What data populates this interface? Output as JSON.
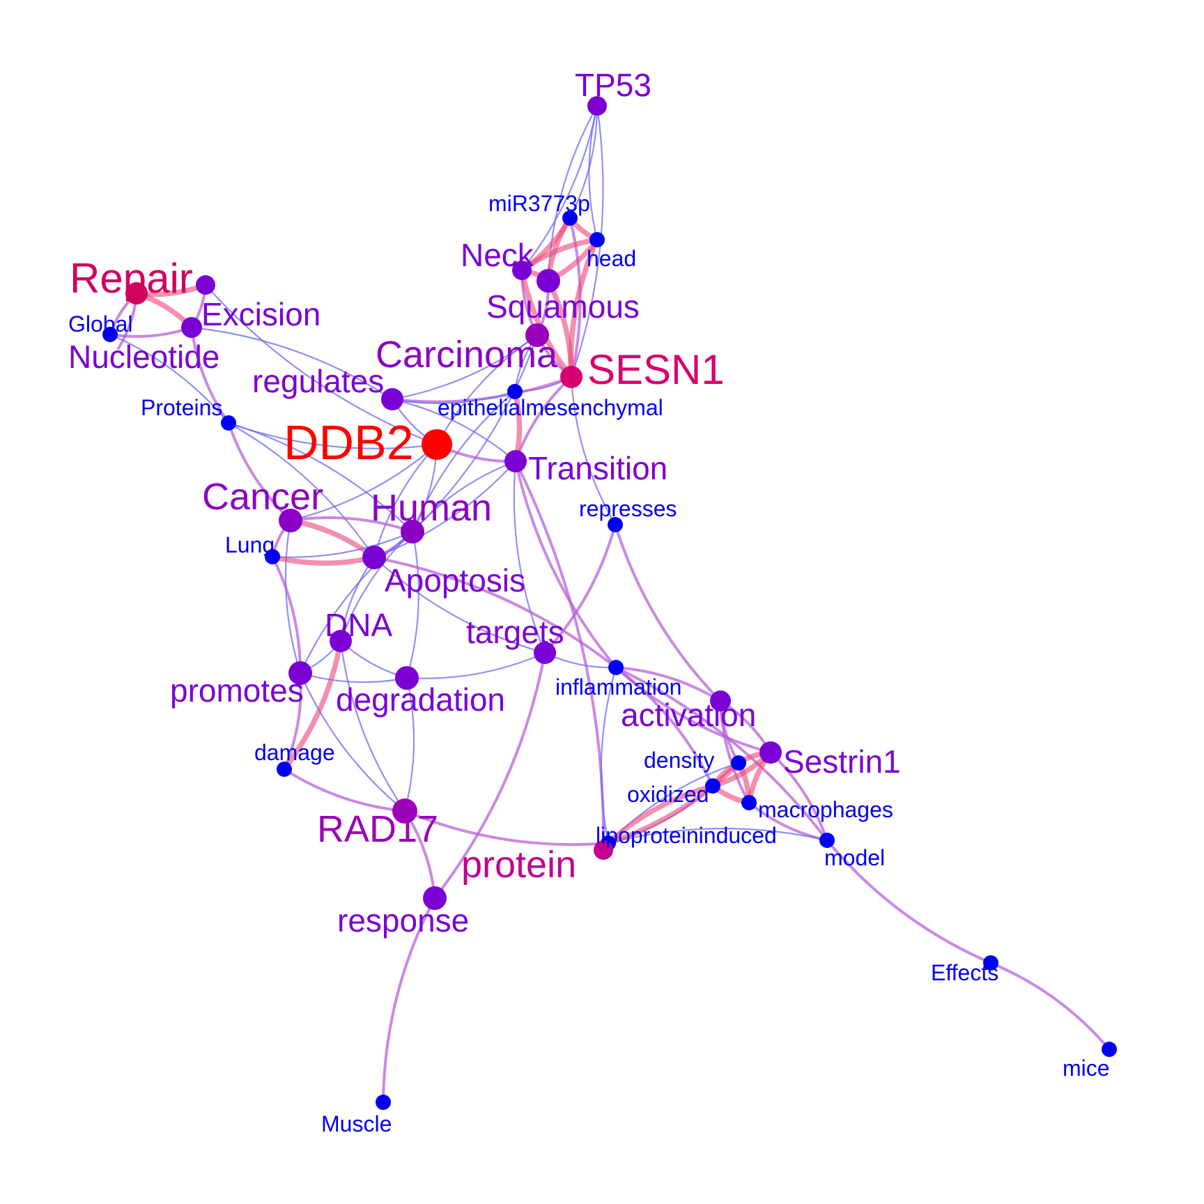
{
  "colors": {
    "background": "#ffffff",
    "edge_weak": "#6a6af0",
    "edge_mid": "#b65ad8",
    "edge_strong": "#ee4a7a"
  },
  "nodes": [
    {
      "id": "TP53",
      "label": "TP53",
      "color": "#7b00d4",
      "label_color": "#7b00d4",
      "r": 14,
      "level": 4
    },
    {
      "id": "miR3773p",
      "label": "miR3773p",
      "color": "#0000f0",
      "label_color": "#0000f0",
      "r": 11,
      "level": 1
    },
    {
      "id": "head",
      "label": "head",
      "color": "#0000f0",
      "label_color": "#0000f0",
      "r": 11,
      "level": 1
    },
    {
      "id": "Neck",
      "label": "Neck",
      "color": "#7b00d4",
      "label_color": "#7b00d4",
      "r": 14,
      "level": 4
    },
    {
      "id": "Squamous",
      "label": "Squamous",
      "color": "#7b00d4",
      "label_color": "#7b00d4",
      "r": 17,
      "level": 4
    },
    {
      "id": "SquamousHub",
      "label": "",
      "color": "#9a00b8",
      "label_color": "#9a00b8",
      "r": 17,
      "level": 4
    },
    {
      "id": "Carcinoma",
      "label": "Carcinoma",
      "color": "#8a00c4",
      "label_color": "#8a00c4",
      "r": 0,
      "level": 5
    },
    {
      "id": "SESN1",
      "label": "SESN1",
      "color": "#d8006e",
      "label_color": "#d8006e",
      "r": 16,
      "level": 6
    },
    {
      "id": "epithelialmesenchymal",
      "label": "epithelialmesenchymal",
      "color": "#0000f0",
      "label_color": "#0000f0",
      "r": 11,
      "level": 1
    },
    {
      "id": "Repair",
      "label": "Repair",
      "color": "#d00060",
      "label_color": "#d00060",
      "r": 16,
      "level": 6
    },
    {
      "id": "RepairNb",
      "label": "",
      "color": "#7b00d4",
      "label_color": "#7b00d4",
      "r": 14,
      "level": 4
    },
    {
      "id": "Excision",
      "label": "Excision",
      "color": "#7b00d4",
      "label_color": "#7b00d4",
      "r": 15,
      "level": 4
    },
    {
      "id": "Global",
      "label": "Global",
      "color": "#0000f0",
      "label_color": "#0000f0",
      "r": 11,
      "level": 1
    },
    {
      "id": "Nucleotide",
      "label": "Nucleotide",
      "color": "#7b00d4",
      "label_color": "#7b00d4",
      "r": 0,
      "level": 4
    },
    {
      "id": "regulates",
      "label": "regulates",
      "color": "#7b00d4",
      "label_color": "#7b00d4",
      "r": 16,
      "level": 4
    },
    {
      "id": "Proteins",
      "label": "Proteins",
      "color": "#0000f0",
      "label_color": "#0000f0",
      "r": 11,
      "level": 1
    },
    {
      "id": "DDB2",
      "label": "DDB2",
      "color": "#ff0000",
      "label_color": "#ff0000",
      "r": 22,
      "level": 7
    },
    {
      "id": "Transition",
      "label": "Transition",
      "color": "#7b00d4",
      "label_color": "#7b00d4",
      "r": 16,
      "level": 4
    },
    {
      "id": "Cancer",
      "label": "Cancer",
      "color": "#8a00c4",
      "label_color": "#8a00c4",
      "r": 17,
      "level": 5
    },
    {
      "id": "Human",
      "label": "Human",
      "color": "#8a00c4",
      "label_color": "#8a00c4",
      "r": 17,
      "level": 5
    },
    {
      "id": "represses",
      "label": "represses",
      "color": "#0000f0",
      "label_color": "#0000f0",
      "r": 11,
      "level": 1
    },
    {
      "id": "Lung",
      "label": "Lung",
      "color": "#0000f0",
      "label_color": "#0000f0",
      "r": 11,
      "level": 1
    },
    {
      "id": "Apoptosis",
      "label": "Apoptosis",
      "color": "#7b00d4",
      "label_color": "#7b00d4",
      "r": 17,
      "level": 4
    },
    {
      "id": "DNA",
      "label": "DNA",
      "color": "#7b00d4",
      "label_color": "#7b00d4",
      "r": 16,
      "level": 4
    },
    {
      "id": "targets",
      "label": "targets",
      "color": "#7b00d4",
      "label_color": "#7b00d4",
      "r": 16,
      "level": 4
    },
    {
      "id": "inflammation",
      "label": "inflammation",
      "color": "#0000f0",
      "label_color": "#0000f0",
      "r": 11,
      "level": 1
    },
    {
      "id": "promotes",
      "label": "promotes",
      "color": "#7b00d4",
      "label_color": "#7b00d4",
      "r": 17,
      "level": 4
    },
    {
      "id": "degradation",
      "label": "degradation",
      "color": "#7b00d4",
      "label_color": "#7b00d4",
      "r": 17,
      "level": 4
    },
    {
      "id": "activation",
      "label": "activation",
      "color": "#7b00d4",
      "label_color": "#7b00d4",
      "r": 15,
      "level": 4
    },
    {
      "id": "density",
      "label": "density",
      "color": "#0000f0",
      "label_color": "#0000f0",
      "r": 11,
      "level": 1
    },
    {
      "id": "Sestrin1",
      "label": "Sestrin1",
      "color": "#7b00d4",
      "label_color": "#7b00d4",
      "r": 16,
      "level": 4
    },
    {
      "id": "damage",
      "label": "damage",
      "color": "#0000f0",
      "label_color": "#0000f0",
      "r": 11,
      "level": 1
    },
    {
      "id": "oxidized",
      "label": "oxidized",
      "color": "#0000f0",
      "label_color": "#0000f0",
      "r": 11,
      "level": 1
    },
    {
      "id": "macrophages",
      "label": "macrophages",
      "color": "#0000f0",
      "label_color": "#0000f0",
      "r": 11,
      "level": 1
    },
    {
      "id": "RAD17",
      "label": "RAD17",
      "color": "#9a00b8",
      "label_color": "#9a00b8",
      "r": 18,
      "level": 5
    },
    {
      "id": "lipoproteininduced",
      "label": "lipoproteininduced",
      "color": "#0000f0",
      "label_color": "#0000f0",
      "r": 11,
      "level": 1
    },
    {
      "id": "model",
      "label": "model",
      "color": "#0000f0",
      "label_color": "#0000f0",
      "r": 11,
      "level": 1
    },
    {
      "id": "protein",
      "label": "protein",
      "color": "#c00090",
      "label_color": "#c00090",
      "r": 14,
      "level": 6
    },
    {
      "id": "response",
      "label": "response",
      "color": "#7b00d4",
      "label_color": "#7b00d4",
      "r": 17,
      "level": 4
    },
    {
      "id": "Effects",
      "label": "Effects",
      "color": "#0000f0",
      "label_color": "#0000f0",
      "r": 11,
      "level": 1
    },
    {
      "id": "mice",
      "label": "mice",
      "color": "#0000f0",
      "label_color": "#0000f0",
      "r": 11,
      "level": 1
    },
    {
      "id": "Muscle",
      "label": "Muscle",
      "color": "#0000f0",
      "label_color": "#0000f0",
      "r": 11,
      "level": 1
    }
  ],
  "edges": [
    [
      "TP53",
      "miR3773p",
      1
    ],
    [
      "TP53",
      "head",
      1
    ],
    [
      "TP53",
      "Neck",
      1
    ],
    [
      "TP53",
      "Squamous",
      1
    ],
    [
      "TP53",
      "SESN1",
      1
    ],
    [
      "miR3773p",
      "head",
      3
    ],
    [
      "miR3773p",
      "Neck",
      3
    ],
    [
      "miR3773p",
      "Squamous",
      3
    ],
    [
      "miR3773p",
      "SESN1",
      2
    ],
    [
      "head",
      "Neck",
      3
    ],
    [
      "head",
      "Squamous",
      3
    ],
    [
      "head",
      "SESN1",
      3
    ],
    [
      "Neck",
      "Squamous",
      3
    ],
    [
      "Neck",
      "SquamousHub",
      2
    ],
    [
      "Squamous",
      "SquamousHub",
      2
    ],
    [
      "Neck",
      "SESN1",
      3
    ],
    [
      "Squamous",
      "SESN1",
      3
    ],
    [
      "SquamousHub",
      "SESN1",
      2
    ],
    [
      "SquamousHub",
      "regulates",
      1
    ],
    [
      "SquamousHub",
      "DDB2",
      1
    ],
    [
      "SquamousHub",
      "Human",
      1
    ],
    [
      "SquamousHub",
      "epithelialmesenchymal",
      1
    ],
    [
      "SESN1",
      "epithelialmesenchymal",
      1
    ],
    [
      "SESN1",
      "Transition",
      2
    ],
    [
      "SESN1",
      "regulates",
      2
    ],
    [
      "SESN1",
      "represses",
      1
    ],
    [
      "epithelialmesenchymal",
      "Transition",
      3
    ],
    [
      "epithelialmesenchymal",
      "Human",
      1
    ],
    [
      "epithelialmesenchymal",
      "regulates",
      1
    ],
    [
      "Repair",
      "RepairNb",
      3
    ],
    [
      "Repair",
      "Excision",
      3
    ],
    [
      "Repair",
      "Global",
      2
    ],
    [
      "Repair",
      "Nucleotide",
      2
    ],
    [
      "Excision",
      "RepairNb",
      2
    ],
    [
      "Excision",
      "Global",
      2
    ],
    [
      "Excision",
      "Proteins",
      2
    ],
    [
      "Excision",
      "regulates",
      1
    ],
    [
      "RepairNb",
      "DDB2",
      1
    ],
    [
      "Global",
      "Proteins",
      1
    ],
    [
      "Proteins",
      "Cancer",
      2
    ],
    [
      "Proteins",
      "Human",
      1
    ],
    [
      "Proteins",
      "DDB2",
      1
    ],
    [
      "Proteins",
      "Apoptosis",
      1
    ],
    [
      "regulates",
      "DDB2",
      1
    ],
    [
      "regulates",
      "Transition",
      1
    ],
    [
      "DDB2",
      "Transition",
      2
    ],
    [
      "DDB2",
      "Human",
      1
    ],
    [
      "DDB2",
      "Apoptosis",
      1
    ],
    [
      "DDB2",
      "Cancer",
      1
    ],
    [
      "Transition",
      "Human",
      1
    ],
    [
      "Transition",
      "Apoptosis",
      1
    ],
    [
      "Transition",
      "targets",
      1
    ],
    [
      "Transition",
      "protein",
      2
    ],
    [
      "Transition",
      "inflammation",
      2
    ],
    [
      "Cancer",
      "Human",
      2
    ],
    [
      "Cancer",
      "Lung",
      2
    ],
    [
      "Cancer",
      "Apoptosis",
      3
    ],
    [
      "Cancer",
      "promotes",
      1
    ],
    [
      "Human",
      "Apoptosis",
      2
    ],
    [
      "Human",
      "DNA",
      1
    ],
    [
      "Human",
      "degradation",
      1
    ],
    [
      "Human",
      "promotes",
      1
    ],
    [
      "Human",
      "Lung",
      1
    ],
    [
      "Lung",
      "Apoptosis",
      3
    ],
    [
      "Lung",
      "promotes",
      2
    ],
    [
      "Apoptosis",
      "DNA",
      1
    ],
    [
      "Apoptosis",
      "inflammation",
      2
    ],
    [
      "Apoptosis",
      "targets",
      1
    ],
    [
      "represses",
      "targets",
      2
    ],
    [
      "represses",
      "activation",
      2
    ],
    [
      "DNA",
      "promotes",
      1
    ],
    [
      "DNA",
      "degradation",
      1
    ],
    [
      "DNA",
      "damage",
      3
    ],
    [
      "DNA",
      "RAD17",
      1
    ],
    [
      "targets",
      "degradation",
      1
    ],
    [
      "targets",
      "inflammation",
      1
    ],
    [
      "targets",
      "response",
      2
    ],
    [
      "promotes",
      "degradation",
      1
    ],
    [
      "promotes",
      "damage",
      2
    ],
    [
      "promotes",
      "RAD17",
      1
    ],
    [
      "degradation",
      "RAD17",
      1
    ],
    [
      "damage",
      "RAD17",
      2
    ],
    [
      "RAD17",
      "response",
      2
    ],
    [
      "RAD17",
      "lipoproteininduced",
      2
    ],
    [
      "inflammation",
      "activation",
      2
    ],
    [
      "inflammation",
      "Sestrin1",
      2
    ],
    [
      "inflammation",
      "oxidized",
      2
    ],
    [
      "inflammation",
      "lipoproteininduced",
      1
    ],
    [
      "inflammation",
      "model",
      2
    ],
    [
      "activation",
      "density",
      2
    ],
    [
      "activation",
      "Sestrin1",
      2
    ],
    [
      "activation",
      "macrophages",
      2
    ],
    [
      "density",
      "Sestrin1",
      3
    ],
    [
      "density",
      "oxidized",
      3
    ],
    [
      "density",
      "macrophages",
      3
    ],
    [
      "density",
      "lipoproteininduced",
      1
    ],
    [
      "Sestrin1",
      "oxidized",
      3
    ],
    [
      "Sestrin1",
      "macrophages",
      3
    ],
    [
      "Sestrin1",
      "model",
      2
    ],
    [
      "oxidized",
      "macrophages",
      3
    ],
    [
      "oxidized",
      "lipoproteininduced",
      1
    ],
    [
      "macrophages",
      "model",
      2
    ],
    [
      "lipoproteininduced",
      "model",
      1
    ],
    [
      "lipoproteininduced",
      "density",
      3
    ],
    [
      "lipoproteininduced",
      "oxidized",
      3
    ],
    [
      "model",
      "Effects",
      2
    ],
    [
      "Effects",
      "mice",
      2
    ],
    [
      "response",
      "Muscle",
      2
    ]
  ]
}
